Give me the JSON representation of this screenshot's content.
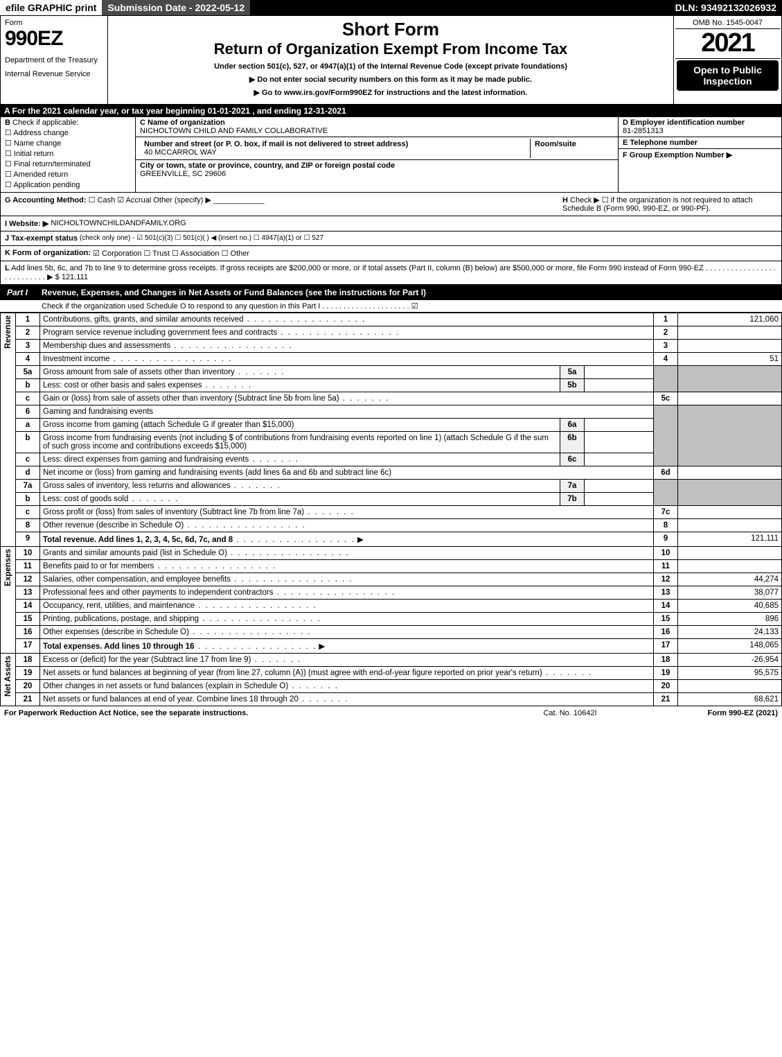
{
  "topbar": {
    "efile": "efile GRAPHIC print",
    "subdate": "Submission Date - 2022-05-12",
    "dln": "DLN: 93492132026932"
  },
  "header": {
    "form_label": "Form",
    "form_num": "990EZ",
    "dept": "Department of the Treasury",
    "irs": "Internal Revenue Service",
    "short": "Short Form",
    "return": "Return of Organization Exempt From Income Tax",
    "under": "Under section 501(c), 527, or 4947(a)(1) of the Internal Revenue Code (except private foundations)",
    "note1": "▶ Do not enter social security numbers on this form as it may be made public.",
    "note2": "▶ Go to www.irs.gov/Form990EZ for instructions and the latest information.",
    "omb": "OMB No. 1545-0047",
    "year": "2021",
    "open": "Open to Public Inspection"
  },
  "line_a": "A  For the 2021 calendar year, or tax year beginning 01-01-2021 , and ending 12-31-2021",
  "col_b": {
    "title": "B",
    "check": "Check if applicable:",
    "opts": [
      "Address change",
      "Name change",
      "Initial return",
      "Final return/terminated",
      "Amended return",
      "Application pending"
    ]
  },
  "col_c": {
    "name_lbl": "C Name of organization",
    "name": "NICHOLTOWN CHILD AND FAMILY COLLABORATIVE",
    "addr_lbl": "Number and street (or P. O. box, if mail is not delivered to street address)",
    "addr": "40 MCCARROL WAY",
    "room_lbl": "Room/suite",
    "city_lbl": "City or town, state or province, country, and ZIP or foreign postal code",
    "city": "GREENVILLE, SC  29606"
  },
  "col_d": {
    "lbl": "D Employer identification number",
    "val": "81-2851313"
  },
  "col_e": {
    "lbl": "E Telephone number",
    "val": ""
  },
  "col_f": {
    "lbl": "F Group Exemption Number  ▶",
    "val": ""
  },
  "row_g": {
    "lbl": "G Accounting Method:",
    "cash": "Cash",
    "accrual": "Accrual",
    "other": "Other (specify) ▶",
    "h_lbl": "H",
    "h_txt": "Check ▶ ☐ if the organization is not required to attach Schedule B (Form 990, 990-EZ, or 990-PF)."
  },
  "row_i": {
    "lbl": "I Website: ▶",
    "val": "NICHOLTOWNCHILDANDFAMILY.ORG"
  },
  "row_j": {
    "lbl": "J Tax-exempt status",
    "txt": "(check only one) - ☑ 501(c)(3) ☐ 501(c)( ) ◀ (insert no.) ☐ 4947(a)(1) or ☐ 527"
  },
  "row_k": {
    "lbl": "K Form of organization:",
    "txt": "☑ Corporation  ☐ Trust  ☐ Association  ☐ Other"
  },
  "row_l": {
    "lbl": "L",
    "txt": "Add lines 5b, 6c, and 7b to line 9 to determine gross receipts. If gross receipts are $200,000 or more, or if total assets (Part II, column (B) below) are $500,000 or more, file Form 990 instead of Form 990-EZ .  .  .  .  .  .  .  .  .  .  .  .  .  .  .  .  .  .  .  .  .  .  .  .  .  .  .  ▶ $ 121,111"
  },
  "part1": {
    "tag": "Part I",
    "title": "Revenue, Expenses, and Changes in Net Assets or Fund Balances (see the instructions for Part I)",
    "sub": "Check if the organization used Schedule O to respond to any question in this Part I .  .  .  .  .  .  .  .  .  .  .  .  .  .  .  .  .  .  .  .  .  ☑"
  },
  "revenue_label": "Revenue",
  "expenses_label": "Expenses",
  "netassets_label": "Net Assets",
  "lines": {
    "1": {
      "d": "Contributions, gifts, grants, and similar amounts received",
      "v": "121,060"
    },
    "2": {
      "d": "Program service revenue including government fees and contracts",
      "v": ""
    },
    "3": {
      "d": "Membership dues and assessments",
      "v": ""
    },
    "4": {
      "d": "Investment income",
      "v": "51"
    },
    "5a": {
      "d": "Gross amount from sale of assets other than inventory"
    },
    "5b_d": "Less: cost or other basis and sales expenses",
    "5c": {
      "d": "Gain or (loss) from sale of assets other than inventory (Subtract line 5b from line 5a)",
      "v": ""
    },
    "6": {
      "d": "Gaming and fundraising events"
    },
    "6a": {
      "d": "Gross income from gaming (attach Schedule G if greater than $15,000)"
    },
    "6b": {
      "d": "Gross income from fundraising events (not including $                      of contributions from fundraising events reported on line 1) (attach Schedule G if the sum of such gross income and contributions exceeds $15,000)"
    },
    "6c": {
      "d": "Less: direct expenses from gaming and fundraising events"
    },
    "6d": {
      "d": "Net income or (loss) from gaming and fundraising events (add lines 6a and 6b and subtract line 6c)",
      "v": ""
    },
    "7a": {
      "d": "Gross sales of inventory, less returns and allowances"
    },
    "7b": {
      "d": "Less: cost of goods sold"
    },
    "7c": {
      "d": "Gross profit or (loss) from sales of inventory (Subtract line 7b from line 7a)",
      "v": ""
    },
    "8": {
      "d": "Other revenue (describe in Schedule O)",
      "v": ""
    },
    "9": {
      "d": "Total revenue. Add lines 1, 2, 3, 4, 5c, 6d, 7c, and 8",
      "v": "121,111"
    },
    "10": {
      "d": "Grants and similar amounts paid (list in Schedule O)",
      "v": ""
    },
    "11": {
      "d": "Benefits paid to or for members",
      "v": ""
    },
    "12": {
      "d": "Salaries, other compensation, and employee benefits",
      "v": "44,274"
    },
    "13": {
      "d": "Professional fees and other payments to independent contractors",
      "v": "38,077"
    },
    "14": {
      "d": "Occupancy, rent, utilities, and maintenance",
      "v": "40,685"
    },
    "15": {
      "d": "Printing, publications, postage, and shipping",
      "v": "896"
    },
    "16": {
      "d": "Other expenses (describe in Schedule O)",
      "v": "24,133"
    },
    "17": {
      "d": "Total expenses. Add lines 10 through 16",
      "v": "148,065"
    },
    "18": {
      "d": "Excess or (deficit) for the year (Subtract line 17 from line 9)",
      "v": "-26,954"
    },
    "19": {
      "d": "Net assets or fund balances at beginning of year (from line 27, column (A)) (must agree with end-of-year figure reported on prior year's return)",
      "v": "95,575"
    },
    "20": {
      "d": "Other changes in net assets or fund balances (explain in Schedule O)",
      "v": ""
    },
    "21": {
      "d": "Net assets or fund balances at end of year. Combine lines 18 through 20",
      "v": "68,621"
    }
  },
  "footer": {
    "left": "For Paperwork Reduction Act Notice, see the separate instructions.",
    "mid": "Cat. No. 10642I",
    "right": "Form 990-EZ (2021)"
  }
}
